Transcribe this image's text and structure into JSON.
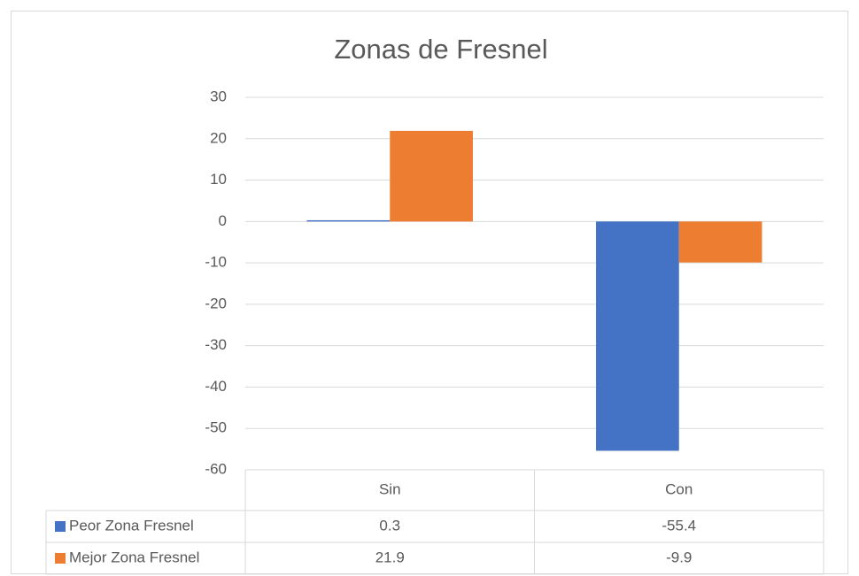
{
  "chart_data": {
    "type": "bar",
    "title": "Zonas de Fresnel",
    "categories": [
      "Sin",
      "Con"
    ],
    "series": [
      {
        "name": "Peor Zona Fresnel",
        "color": "#4472c4",
        "values": [
          0.3,
          -55.4
        ]
      },
      {
        "name": "Mejor Zona Fresnel",
        "color": "#ed7d31",
        "values": [
          21.9,
          -9.9
        ]
      }
    ],
    "ylim": [
      -60,
      30
    ],
    "yticks": [
      -60,
      -50,
      -40,
      -30,
      -20,
      -10,
      0,
      10,
      20,
      30
    ],
    "grid": true,
    "data_table": true
  }
}
